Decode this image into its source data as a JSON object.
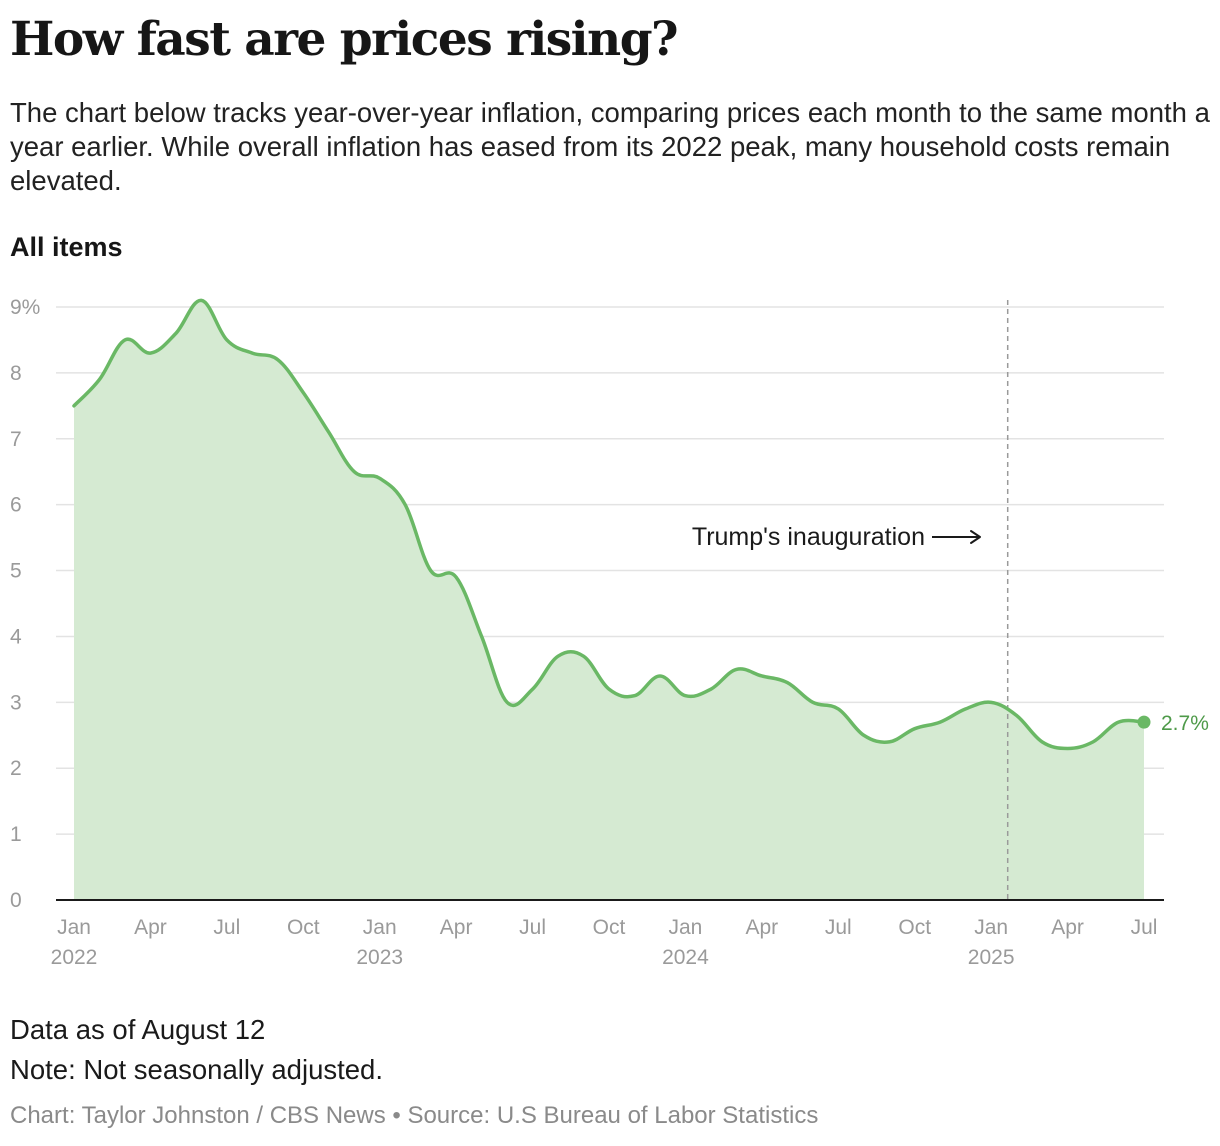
{
  "header": {
    "title": "How fast are prices rising?",
    "subtitle": "The chart below tracks year-over-year inflation, comparing prices each month to the same month a year earlier. While overall inflation has eased from its 2022 peak, many household costs remain elevated."
  },
  "panel": {
    "title": "All items"
  },
  "chart_data": {
    "type": "area",
    "title": "All items",
    "xlabel": "",
    "ylabel": "",
    "ylim": [
      0,
      9
    ],
    "yticks": [
      0,
      1,
      2,
      3,
      4,
      5,
      6,
      7,
      8,
      9
    ],
    "ytick_labels": [
      "0",
      "1",
      "2",
      "3",
      "4",
      "5",
      "6",
      "7",
      "8",
      "9%"
    ],
    "xticks": [
      {
        "index": 0,
        "month": "Jan",
        "year": "2022"
      },
      {
        "index": 3,
        "month": "Apr",
        "year": ""
      },
      {
        "index": 6,
        "month": "Jul",
        "year": ""
      },
      {
        "index": 9,
        "month": "Oct",
        "year": ""
      },
      {
        "index": 12,
        "month": "Jan",
        "year": "2023"
      },
      {
        "index": 15,
        "month": "Apr",
        "year": ""
      },
      {
        "index": 18,
        "month": "Jul",
        "year": ""
      },
      {
        "index": 21,
        "month": "Oct",
        "year": ""
      },
      {
        "index": 24,
        "month": "Jan",
        "year": "2024"
      },
      {
        "index": 27,
        "month": "Apr",
        "year": ""
      },
      {
        "index": 30,
        "month": "Jul",
        "year": ""
      },
      {
        "index": 33,
        "month": "Oct",
        "year": ""
      },
      {
        "index": 36,
        "month": "Jan",
        "year": "2025"
      },
      {
        "index": 39,
        "month": "Apr",
        "year": ""
      },
      {
        "index": 42,
        "month": "Jul",
        "year": ""
      }
    ],
    "series": [
      {
        "name": "All items",
        "unit": "%",
        "values": [
          7.5,
          7.9,
          8.5,
          8.3,
          8.6,
          9.1,
          8.5,
          8.3,
          8.2,
          7.7,
          7.1,
          6.5,
          6.4,
          6.0,
          5.0,
          4.9,
          4.0,
          3.0,
          3.2,
          3.7,
          3.7,
          3.2,
          3.1,
          3.4,
          3.1,
          3.2,
          3.5,
          3.4,
          3.3,
          3.0,
          2.9,
          2.5,
          2.4,
          2.6,
          2.7,
          2.9,
          3.0,
          2.8,
          2.4,
          2.3,
          2.4,
          2.7,
          2.7
        ]
      }
    ],
    "grid": true,
    "colors": {
      "line": "#6ab865",
      "fill": "#d5ead2",
      "label": "#4e9a49",
      "grid": "#e3e3e3",
      "axis": "#1a1a1a",
      "tick": "#9a9a9a",
      "annotation_line": "#9a9a9a"
    },
    "end_label": "2.7%",
    "annotation": {
      "text": "Trump's inauguration",
      "index": 36.65
    }
  },
  "footer": {
    "as_of": "Data as of August 12",
    "note": "Note: Not seasonally adjusted.",
    "credit": "Chart: Taylor Johnston / CBS News • Source: U.S Bureau of Labor Statistics"
  }
}
